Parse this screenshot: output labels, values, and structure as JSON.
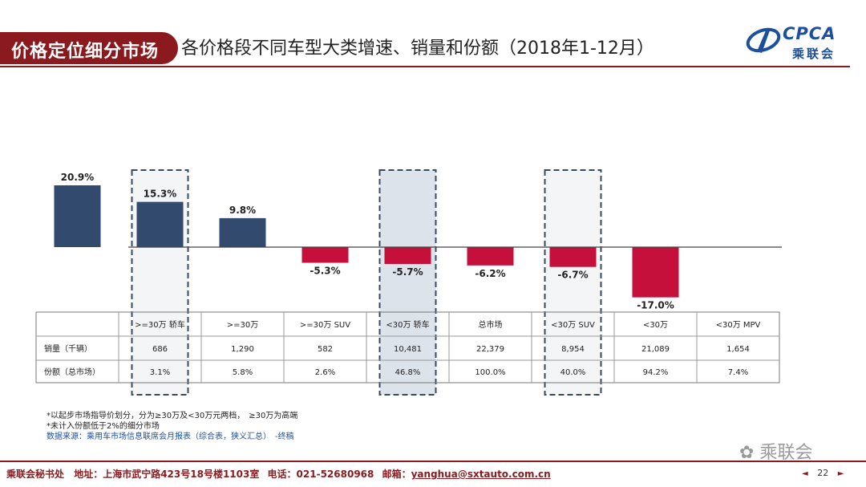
{
  "header": {
    "tag": "价格定位细分市场",
    "title": "各价格段不同车型大类增速、销量和份额（2018年1-12月）",
    "logo_text": "CPCA",
    "logo_sub": "乘联会"
  },
  "chart_data": {
    "type": "bar",
    "categories": [
      ">=30万 轿车",
      ">=30万",
      ">=30万 SUV",
      "<30万 轿车",
      "总市场",
      "<30万 SUV",
      "<30万",
      "<30万 MPV"
    ],
    "values": [
      20.9,
      15.3,
      9.8,
      -5.3,
      -5.7,
      -6.2,
      -6.7,
      -17.0
    ],
    "value_labels": [
      "20.9%",
      "15.3%",
      "9.8%",
      "-5.3%",
      "-5.7%",
      "-6.2%",
      "-6.7%",
      "-17.0%"
    ],
    "highlighted": [
      1,
      4,
      6
    ],
    "highlight_shaded": [
      4
    ],
    "colors": {
      "positive": "#324a6e",
      "negative": "#c4103a",
      "highlight_fill": "#dde3ea",
      "highlight_light": "#f4f5f7"
    },
    "ylim": [
      -17.0,
      20.9
    ],
    "table": {
      "rows": [
        {
          "label": "销量（千辆）",
          "values": [
            "686",
            "1,290",
            "582",
            "10,481",
            "22,379",
            "8,954",
            "21,089",
            "1,654"
          ]
        },
        {
          "label": "份额（总市场）",
          "values": [
            "3.1%",
            "5.8%",
            "2.6%",
            "46.8%",
            "100.0%",
            "40.0%",
            "94.2%",
            "7.4%"
          ]
        }
      ]
    }
  },
  "notes": {
    "line1": "*以起步市场指导价划分，分为≥30万及<30万元两档，　≥30万为高端",
    "line2": "*未计入份额低于2%的细分市场",
    "source": "数据来源：乘用车市场信息联席会月报表（综合表，狭义汇总）　-终稿"
  },
  "footer": {
    "org": "乘联会秘书处",
    "address": "地址：上海市武宁路423号18号楼1103室",
    "phone": "电话：021-52680968",
    "email_label": "邮箱：",
    "email": "yanghua@sxtauto.com.cn",
    "page": "22",
    "prev_icon": "◄",
    "next_icon": "►"
  },
  "watermark": "乘联会"
}
